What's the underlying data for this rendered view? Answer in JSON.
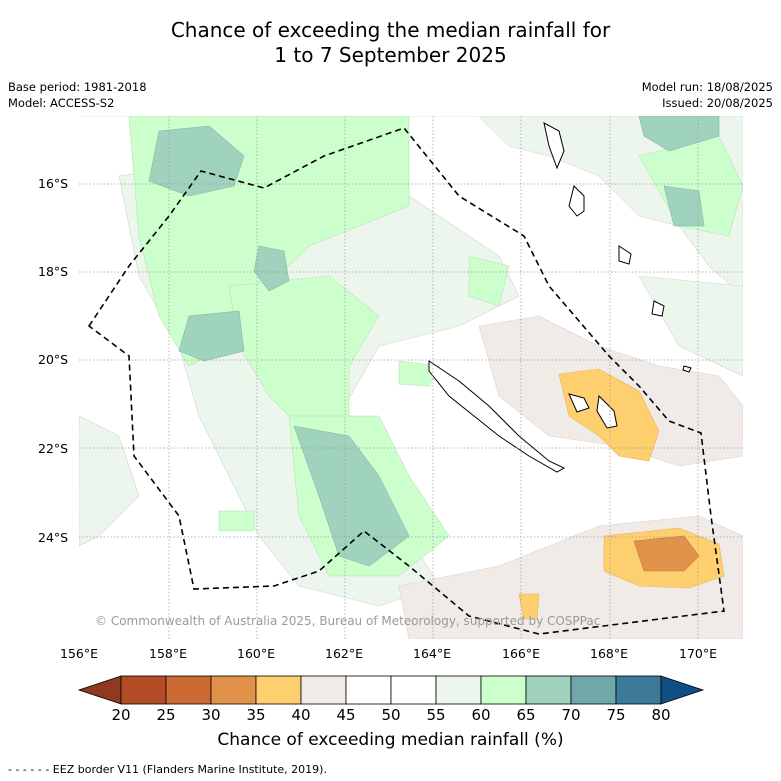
{
  "title_line1": "Chance of exceeding the median rainfall for",
  "title_line2": "1 to 7 September 2025",
  "base_period": "Base period: 1981-2018",
  "model": "Model: ACCESS-S2",
  "model_run": "Model run: 18/08/2025",
  "issued": "Issued: 20/08/2025",
  "lat_labels": [
    "16°S",
    "18°S",
    "20°S",
    "22°S",
    "24°S"
  ],
  "lon_labels": [
    "156°E",
    "158°E",
    "160°E",
    "162°E",
    "164°E",
    "166°E",
    "168°E",
    "170°E"
  ],
  "copyright": "© Commonwealth of Australia 2025, Bureau of Meteorology, supported by COSPPac",
  "colorbar": {
    "label": "Chance of exceeding median rainfall (%)",
    "ticks": [
      "20",
      "25",
      "30",
      "35",
      "40",
      "45",
      "50",
      "55",
      "60",
      "65",
      "70",
      "75",
      "80"
    ],
    "colors": [
      "#8e3a1f",
      "#b34c24",
      "#cc6a33",
      "#e0924a",
      "#fdcf6e",
      "#f1ebe8",
      "#ffffff",
      "#ffffff",
      "#ecf6ec",
      "#ccffcc",
      "#9fd3bd",
      "#6fa8ab",
      "#3c7a99",
      "#124e86"
    ]
  },
  "footnote": "- -  - -  - - EEZ border V11 (Flanders Marine Institute, 2019)."
}
